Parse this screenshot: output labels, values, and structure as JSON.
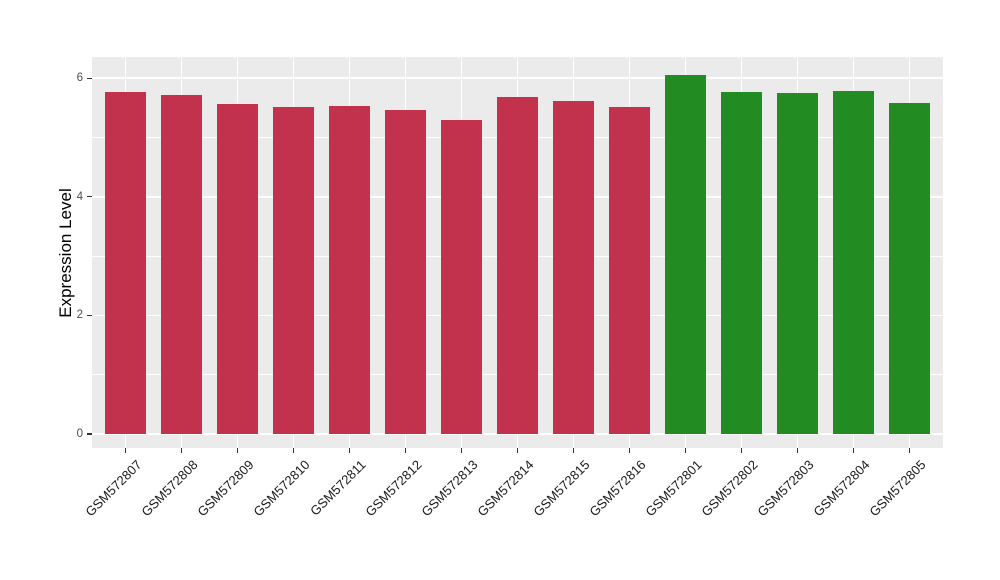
{
  "chart_data": {
    "type": "bar",
    "title": "",
    "xlabel": "",
    "ylabel": "Expression Level",
    "categories": [
      "GSM572807",
      "GSM572808",
      "GSM572809",
      "GSM572810",
      "GSM572811",
      "GSM572812",
      "GSM572813",
      "GSM572814",
      "GSM572815",
      "GSM572816",
      "GSM572801",
      "GSM572802",
      "GSM572803",
      "GSM572804",
      "GSM572805"
    ],
    "values": [
      5.77,
      5.72,
      5.57,
      5.52,
      5.53,
      5.46,
      5.3,
      5.68,
      5.61,
      5.51,
      6.06,
      5.77,
      5.75,
      5.78,
      5.59
    ],
    "bar_colors": [
      "#C3324C",
      "#C3324C",
      "#C3324C",
      "#C3324C",
      "#C3324C",
      "#C3324C",
      "#C3324C",
      "#C3324C",
      "#C3324C",
      "#C3324C",
      "#228B22",
      "#228B22",
      "#228B22",
      "#228B22",
      "#228B22"
    ],
    "group_colors": {
      "red_group": "#C3324C",
      "green_group": "#228B22"
    },
    "yticks": [
      0,
      2,
      4,
      6
    ],
    "yticks_minor": [
      1,
      3,
      5
    ],
    "ylim": [
      -0.25,
      6.35
    ],
    "grid": "horizontal major+minor and vertical major at category centers, white on gray panel",
    "legend": "none",
    "panel_bg": "#EBEBEB",
    "grid_color": "#FFFFFF",
    "axis_text_color": "#4D4D4D",
    "x_label_color": "#1A1A1A",
    "x_label_angle_deg": 45
  }
}
